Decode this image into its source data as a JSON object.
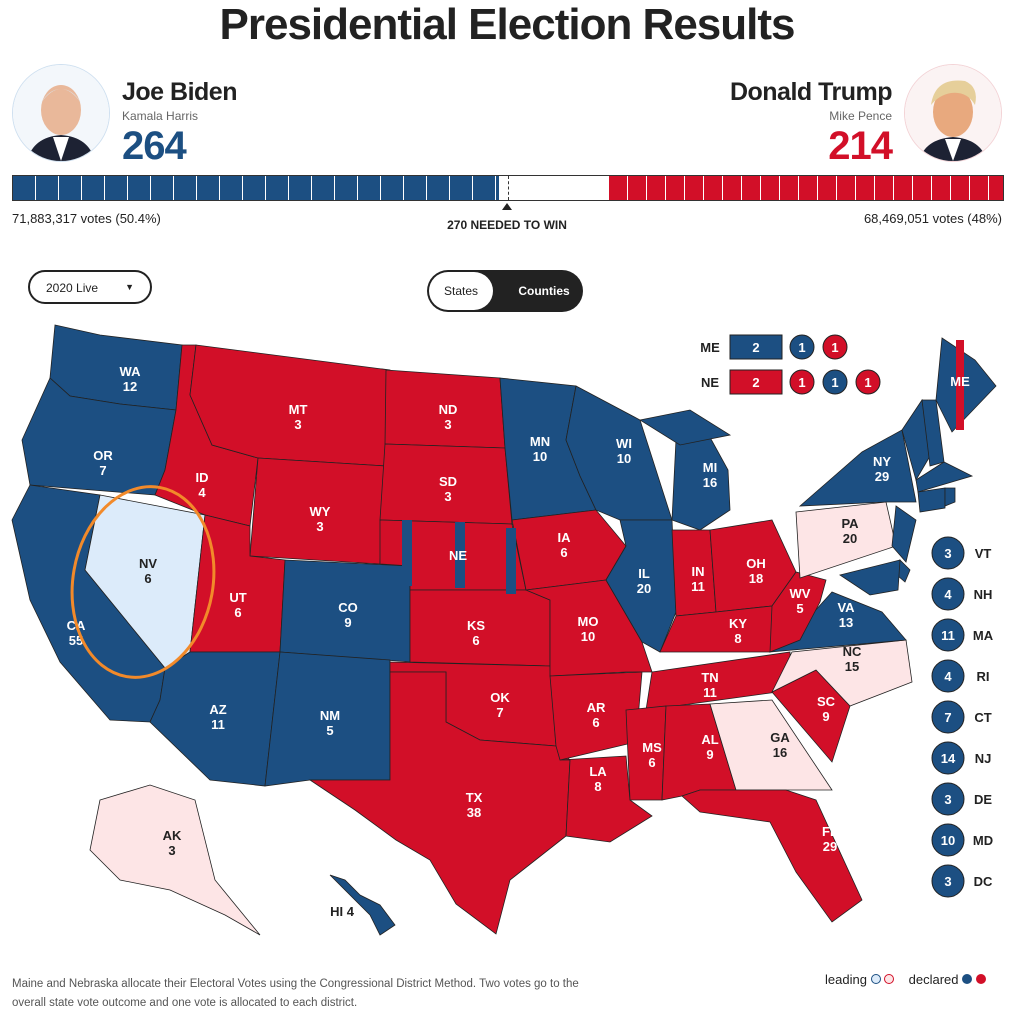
{
  "title": "Presidential Election Results",
  "colors": {
    "dem": "#1c4f82",
    "rep": "#d20f28",
    "dem_leading": "#dcebfa",
    "rep_leading": "#fde5e6"
  },
  "dem": {
    "name": "Joe Biden",
    "vp": "Kamala Harris",
    "ev": "264",
    "votes": "71,883,317 votes (50.4%)"
  },
  "rep": {
    "name": "Donald Trump",
    "vp": "Mike Pence",
    "ev": "214",
    "votes": "68,469,051 votes (48%)"
  },
  "needed": "270 NEEDED TO WIN",
  "total_ev": 538,
  "controls": {
    "year": "2020 Live",
    "states": "States",
    "counties": "Counties"
  },
  "split": {
    "me": {
      "label": "ME",
      "boxes": [
        {
          "v": "2",
          "p": "d"
        },
        {
          "v": "1",
          "p": "d"
        },
        {
          "v": "1",
          "p": "r"
        }
      ]
    },
    "ne": {
      "label": "NE",
      "boxes": [
        {
          "v": "2",
          "p": "r"
        },
        {
          "v": "1",
          "p": "r"
        },
        {
          "v": "1",
          "p": "d"
        },
        {
          "v": "1",
          "p": "r"
        }
      ]
    }
  },
  "small_states": [
    {
      "ev": "3",
      "st": "VT"
    },
    {
      "ev": "4",
      "st": "NH"
    },
    {
      "ev": "11",
      "st": "MA"
    },
    {
      "ev": "4",
      "st": "RI"
    },
    {
      "ev": "7",
      "st": "CT"
    },
    {
      "ev": "14",
      "st": "NJ"
    },
    {
      "ev": "3",
      "st": "DE"
    },
    {
      "ev": "10",
      "st": "MD"
    },
    {
      "ev": "3",
      "st": "DC"
    }
  ],
  "states": [
    {
      "st": "WA",
      "ev": "12",
      "s": "d"
    },
    {
      "st": "OR",
      "ev": "7",
      "s": "d"
    },
    {
      "st": "CA",
      "ev": "55",
      "s": "d"
    },
    {
      "st": "NV",
      "ev": "6",
      "s": "dl"
    },
    {
      "st": "ID",
      "ev": "4",
      "s": "r"
    },
    {
      "st": "MT",
      "ev": "3",
      "s": "r"
    },
    {
      "st": "WY",
      "ev": "3",
      "s": "r"
    },
    {
      "st": "UT",
      "ev": "6",
      "s": "r"
    },
    {
      "st": "CO",
      "ev": "9",
      "s": "d"
    },
    {
      "st": "AZ",
      "ev": "11",
      "s": "d"
    },
    {
      "st": "NM",
      "ev": "5",
      "s": "d"
    },
    {
      "st": "ND",
      "ev": "3",
      "s": "r"
    },
    {
      "st": "SD",
      "ev": "3",
      "s": "r"
    },
    {
      "st": "NE",
      "ev": "",
      "s": "r"
    },
    {
      "st": "KS",
      "ev": "6",
      "s": "r"
    },
    {
      "st": "OK",
      "ev": "7",
      "s": "r"
    },
    {
      "st": "TX",
      "ev": "38",
      "s": "r"
    },
    {
      "st": "MN",
      "ev": "10",
      "s": "d"
    },
    {
      "st": "IA",
      "ev": "6",
      "s": "r"
    },
    {
      "st": "MO",
      "ev": "10",
      "s": "r"
    },
    {
      "st": "AR",
      "ev": "6",
      "s": "r"
    },
    {
      "st": "LA",
      "ev": "8",
      "s": "r"
    },
    {
      "st": "WI",
      "ev": "10",
      "s": "d"
    },
    {
      "st": "IL",
      "ev": "20",
      "s": "d"
    },
    {
      "st": "MI",
      "ev": "16",
      "s": "d"
    },
    {
      "st": "IN",
      "ev": "11",
      "s": "r"
    },
    {
      "st": "OH",
      "ev": "18",
      "s": "r"
    },
    {
      "st": "KY",
      "ev": "8",
      "s": "r"
    },
    {
      "st": "TN",
      "ev": "11",
      "s": "r"
    },
    {
      "st": "MS",
      "ev": "6",
      "s": "r"
    },
    {
      "st": "AL",
      "ev": "9",
      "s": "r"
    },
    {
      "st": "GA",
      "ev": "16",
      "s": "rl"
    },
    {
      "st": "FL",
      "ev": "29",
      "s": "r"
    },
    {
      "st": "SC",
      "ev": "9",
      "s": "r"
    },
    {
      "st": "NC",
      "ev": "15",
      "s": "rl"
    },
    {
      "st": "VA",
      "ev": "13",
      "s": "d"
    },
    {
      "st": "WV",
      "ev": "5",
      "s": "r"
    },
    {
      "st": "PA",
      "ev": "20",
      "s": "rl"
    },
    {
      "st": "NY",
      "ev": "29",
      "s": "d"
    },
    {
      "st": "ME",
      "ev": "",
      "s": "d"
    },
    {
      "st": "AK",
      "ev": "3",
      "s": "rl"
    },
    {
      "st": "HI",
      "ev": "4",
      "s": "d"
    }
  ],
  "footnote": "Maine and Nebraska allocate their Electoral Votes using the Congressional District Method. Two votes go to the overall state vote outcome and one vote is allocated to each district.",
  "legend": {
    "leading": "leading",
    "declared": "declared"
  }
}
